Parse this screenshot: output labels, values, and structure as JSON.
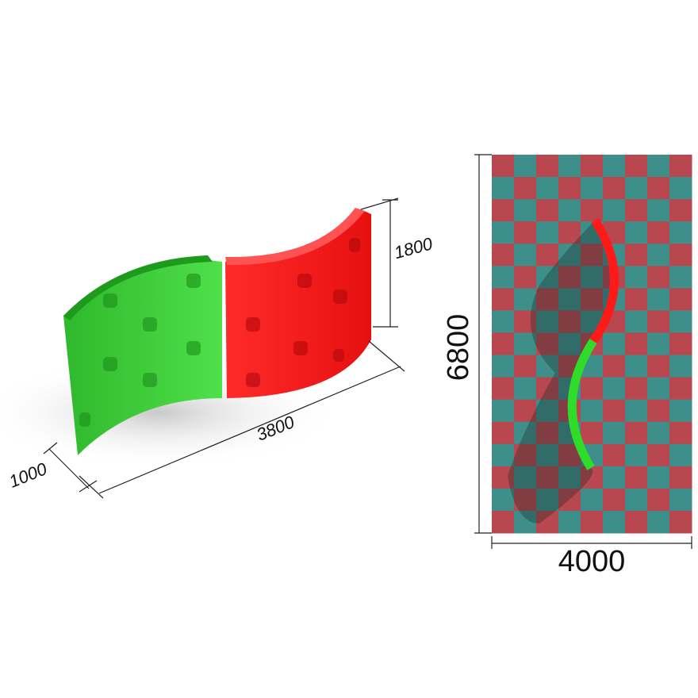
{
  "dimensions": {
    "height": "1800",
    "length": "3800",
    "depth": "1000",
    "area_length": "6800",
    "area_width": "4000"
  }
}
